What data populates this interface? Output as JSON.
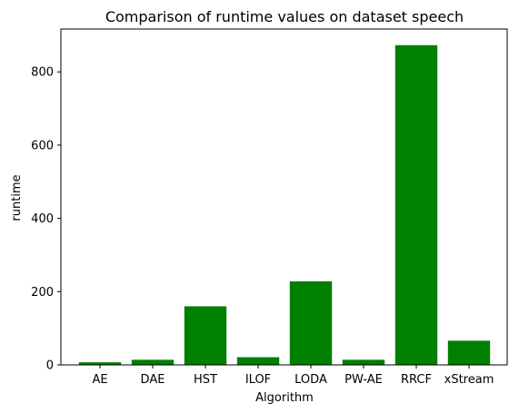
{
  "chart_data": {
    "type": "bar",
    "title": "Comparison of runtime values on dataset speech",
    "xlabel": "Algorithm",
    "ylabel": "runtime",
    "categories": [
      "AE",
      "DAE",
      "HST",
      "ILOF",
      "LODA",
      "PW-AE",
      "RRCF",
      "xStream"
    ],
    "values": [
      7,
      14,
      160,
      21,
      228,
      14,
      873,
      66
    ],
    "ylim": [
      0,
      917
    ],
    "yticks": [
      0,
      200,
      400,
      600,
      800
    ],
    "bar_color": "#008000",
    "grid": false,
    "legend": false
  }
}
